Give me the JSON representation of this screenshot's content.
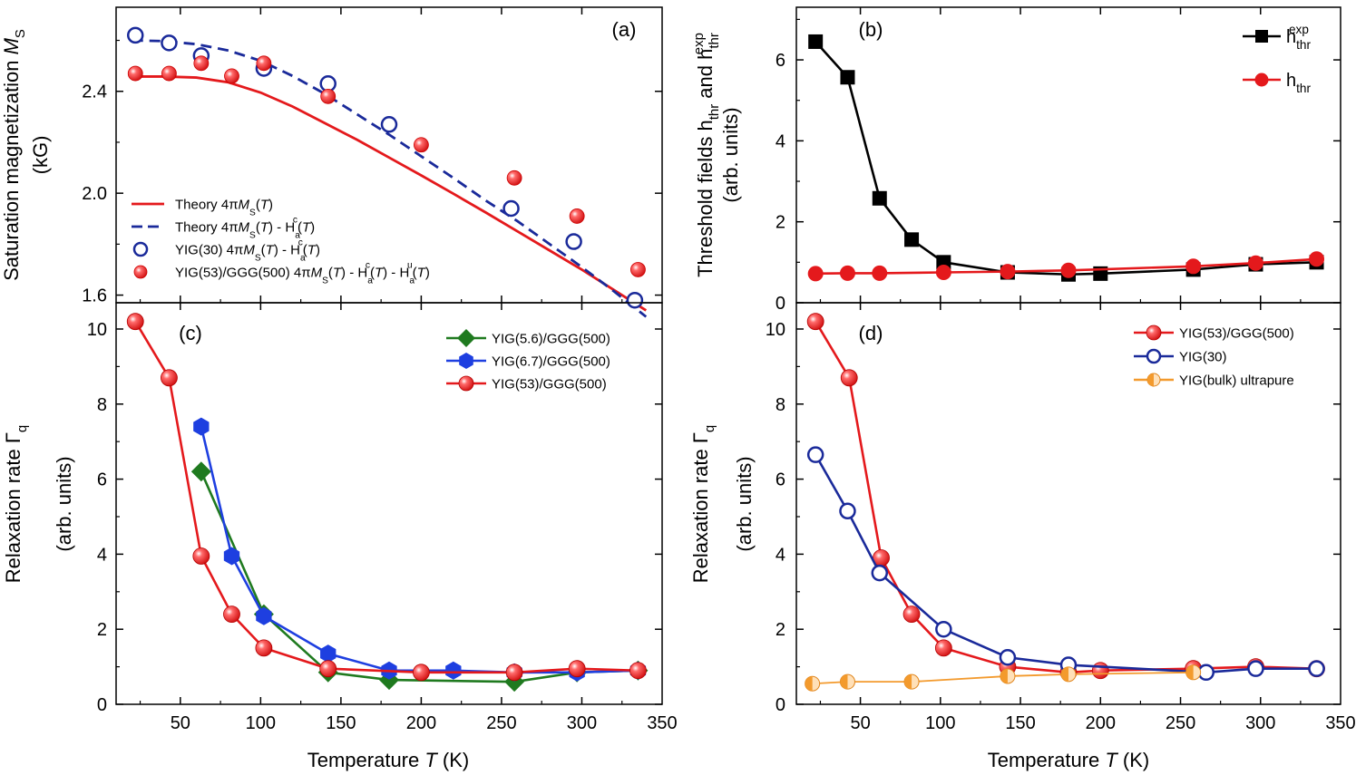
{
  "figure": {
    "xlabel_left": "Temperature T (K)",
    "xlabel_right": "Temperature T (K)"
  },
  "chart_data": [
    {
      "id": "a",
      "type": "scatter",
      "panel_label": "(a)",
      "ylabel": "Saturation magnetization M_S",
      "ylabel_unit": "(kG)",
      "xlim": [
        10,
        350
      ],
      "ylim": [
        1.57,
        2.73
      ],
      "x_ticks": [],
      "y_ticks": [
        1.6,
        2.0,
        2.4
      ],
      "y_tick_labels": [
        "1.6",
        "2.0",
        "2.4"
      ],
      "legend_position": "lower-left",
      "series": [
        {
          "name": "Theory 4πM_S(T)",
          "style": "solid-line",
          "color": "#e4191c",
          "x": [
            20,
            40,
            60,
            80,
            100,
            120,
            140,
            160,
            180,
            200,
            220,
            240,
            260,
            280,
            300,
            320,
            340
          ],
          "y": [
            2.458,
            2.458,
            2.454,
            2.435,
            2.395,
            2.34,
            2.275,
            2.21,
            2.14,
            2.07,
            1.998,
            1.925,
            1.85,
            1.775,
            1.7,
            1.62,
            1.54
          ]
        },
        {
          "name": "Theory 4πM_S(T) - H_a^c(T)",
          "style": "dashed-line",
          "color": "#1a2a9a",
          "x": [
            20,
            40,
            60,
            80,
            100,
            120,
            140,
            160,
            180,
            200,
            220,
            240,
            260,
            280,
            300,
            320,
            340
          ],
          "y": [
            2.6,
            2.597,
            2.585,
            2.56,
            2.52,
            2.46,
            2.39,
            2.31,
            2.23,
            2.145,
            2.06,
            1.972,
            1.89,
            1.8,
            1.71,
            1.615,
            1.515
          ]
        },
        {
          "name": "YIG(30) 4πM_S(T) - H_a^c(T)",
          "style": "open-circle",
          "color": "#1a2a9a",
          "x": [
            22,
            43,
            63,
            102,
            142,
            180,
            256,
            295,
            333
          ],
          "y": [
            2.62,
            2.59,
            2.54,
            2.49,
            2.43,
            2.27,
            1.94,
            1.81,
            1.58
          ]
        },
        {
          "name": "YIG(53)/GGG(500) 4πM_S(T) - H_a^c(T) - H_a^u(T)",
          "style": "filled-circle",
          "color": "#e4191c",
          "x": [
            22,
            43,
            63,
            82,
            102,
            142,
            200,
            258,
            297,
            335
          ],
          "y": [
            2.47,
            2.47,
            2.51,
            2.46,
            2.51,
            2.38,
            2.19,
            2.06,
            1.91,
            1.7
          ]
        }
      ]
    },
    {
      "id": "b",
      "type": "line",
      "panel_label": "(b)",
      "ylabel": "Threshold fields h_thr and h_thr^exp",
      "ylabel_unit": "(arb. units)",
      "xlim": [
        10,
        350
      ],
      "ylim": [
        0,
        7.3
      ],
      "x_ticks": [],
      "y_ticks": [
        0,
        2,
        4,
        6
      ],
      "y_tick_labels": [
        "0",
        "2",
        "4",
        "6"
      ],
      "legend_position": "top-right",
      "series": [
        {
          "name": "h_thr^exp",
          "style": "square-line",
          "color": "#000000",
          "x": [
            22,
            42,
            62,
            82,
            102,
            142,
            180,
            200,
            258,
            297,
            335
          ],
          "y": [
            6.45,
            5.57,
            2.58,
            1.56,
            1.0,
            0.75,
            0.7,
            0.72,
            0.82,
            0.95,
            1.0
          ]
        },
        {
          "name": "h_thr",
          "style": "circle-line",
          "color": "#e4191c",
          "x": [
            22,
            42,
            62,
            102,
            142,
            180,
            258,
            297,
            335
          ],
          "y": [
            0.72,
            0.73,
            0.73,
            0.75,
            0.77,
            0.8,
            0.9,
            0.98,
            1.08
          ]
        }
      ]
    },
    {
      "id": "c",
      "type": "line",
      "panel_label": "(c)",
      "ylabel": "Relaxation rate Γ_q",
      "ylabel_unit": "(arb. units)",
      "xlim": [
        10,
        350
      ],
      "ylim": [
        0,
        10.7
      ],
      "x_ticks": [
        50,
        100,
        150,
        200,
        250,
        300,
        350
      ],
      "x_tick_labels": [
        "50",
        "100",
        "150",
        "200",
        "250",
        "300",
        "350"
      ],
      "y_ticks": [
        0,
        2,
        4,
        6,
        8,
        10
      ],
      "y_tick_labels": [
        "0",
        "2",
        "4",
        "6",
        "8",
        "10"
      ],
      "legend_position": "top-right",
      "series": [
        {
          "name": "YIG(5.6)/GGG(500)",
          "style": "diamond-line",
          "color": "#1f7a1f",
          "x": [
            63,
            102,
            142,
            180,
            258,
            297,
            335
          ],
          "y": [
            6.2,
            2.4,
            0.85,
            0.65,
            0.6,
            0.85,
            0.9
          ]
        },
        {
          "name": "YIG(6.7)/GGG(500)",
          "style": "hexagon-line",
          "color": "#1e3fe0",
          "x": [
            63,
            82,
            102,
            142,
            180,
            220,
            258,
            297,
            335
          ],
          "y": [
            7.4,
            3.95,
            2.35,
            1.35,
            0.9,
            0.9,
            0.85,
            0.85,
            0.9
          ]
        },
        {
          "name": "YIG(53)/GGG(500)",
          "style": "ball-line",
          "color": "#e4191c",
          "x": [
            22,
            43,
            63,
            82,
            102,
            142,
            200,
            258,
            297,
            335
          ],
          "y": [
            10.2,
            8.7,
            3.95,
            2.4,
            1.5,
            0.95,
            0.85,
            0.85,
            0.95,
            0.9
          ]
        }
      ]
    },
    {
      "id": "d",
      "type": "line",
      "panel_label": "(d)",
      "ylabel": "Relaxation rate Γ_q",
      "ylabel_unit": "(arb. units)",
      "xlim": [
        10,
        350
      ],
      "ylim": [
        0,
        10.7
      ],
      "x_ticks": [
        50,
        100,
        150,
        200,
        250,
        300,
        350
      ],
      "x_tick_labels": [
        "50",
        "100",
        "150",
        "200",
        "250",
        "300",
        "350"
      ],
      "y_ticks": [
        0,
        2,
        4,
        6,
        8,
        10
      ],
      "y_tick_labels": [
        "0",
        "2",
        "4",
        "6",
        "8",
        "10"
      ],
      "legend_position": "top-right",
      "series": [
        {
          "name": "YIG(53)/GGG(500)",
          "style": "ball-line",
          "color": "#e4191c",
          "x": [
            22,
            43,
            63,
            82,
            102,
            142,
            180,
            200,
            258,
            297,
            335
          ],
          "y": [
            10.2,
            8.7,
            3.9,
            2.4,
            1.5,
            1.0,
            0.85,
            0.9,
            0.95,
            1.0,
            0.95
          ]
        },
        {
          "name": "YIG(30)",
          "style": "open-circle-line",
          "color": "#1a2a9a",
          "x": [
            22,
            42,
            62,
            102,
            142,
            180,
            266,
            297,
            335
          ],
          "y": [
            6.65,
            5.15,
            3.5,
            2.0,
            1.25,
            1.05,
            0.85,
            0.95,
            0.95
          ]
        },
        {
          "name": "YIG(bulk) ultrapure",
          "style": "half-circle-line",
          "color": "#f39a2d",
          "x": [
            20,
            42,
            82,
            142,
            180,
            258
          ],
          "y": [
            0.55,
            0.6,
            0.6,
            0.75,
            0.8,
            0.85
          ]
        }
      ]
    }
  ]
}
